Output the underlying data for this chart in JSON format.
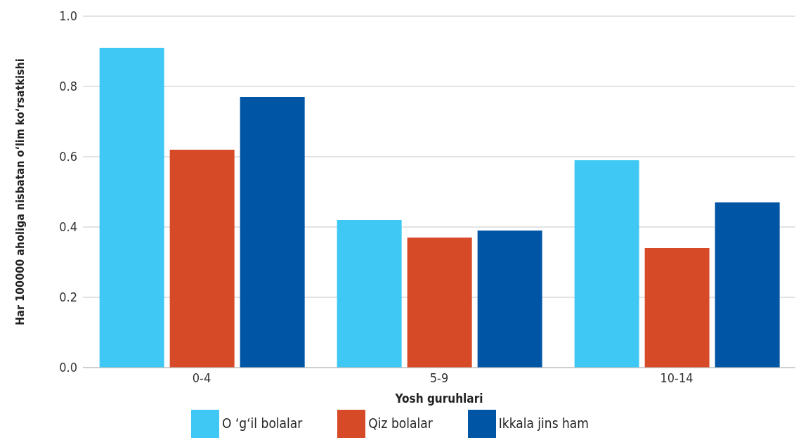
{
  "chart_data": {
    "type": "bar",
    "xlabel": "Yosh guruhlari",
    "ylabel": "Har 100000 aholiga nisbatan o‘lim ko‘rsatkishi",
    "categories": [
      "0-4",
      "5-9",
      "10-14"
    ],
    "series": [
      {
        "name": "O ‘g‘il bolalar",
        "color": "#3ec8f3",
        "values": [
          0.91,
          0.42,
          0.59
        ]
      },
      {
        "name": "Qiz bolalar",
        "color": "#d64a27",
        "values": [
          0.62,
          0.37,
          0.34
        ]
      },
      {
        "name": "Ikkala jins ham",
        "color": "#0055a5",
        "values": [
          0.77,
          0.39,
          0.47
        ]
      }
    ],
    "ylim": [
      0,
      1
    ],
    "yticks": [
      {
        "value": 0,
        "label": "0.0"
      },
      {
        "value": 0.2,
        "label": "0.2"
      },
      {
        "value": 0.4,
        "label": "0.4"
      },
      {
        "value": 0.6,
        "label": "0.6"
      },
      {
        "value": 0.8,
        "label": "0.8"
      },
      {
        "value": 1,
        "label": "1.0"
      }
    ],
    "grid": "y",
    "legend": "bottom"
  }
}
